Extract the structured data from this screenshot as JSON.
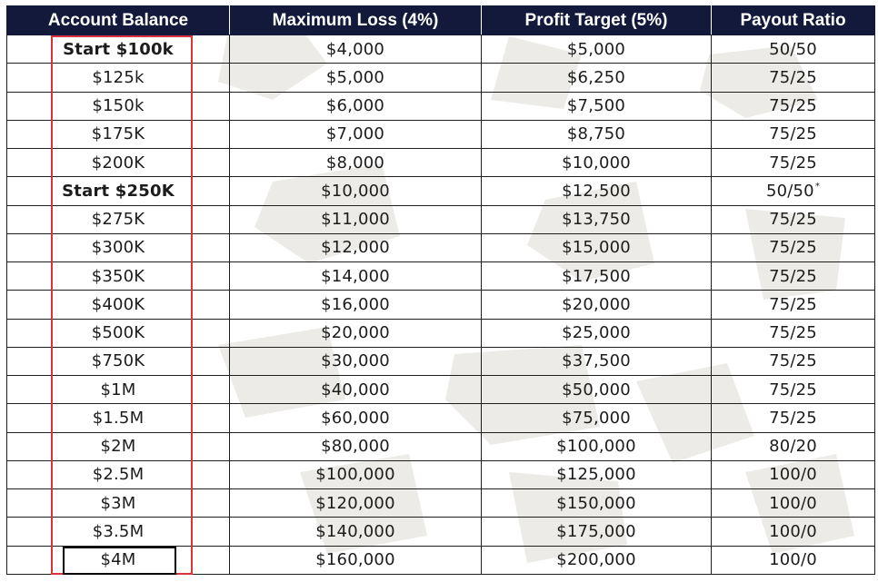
{
  "table": {
    "headers": [
      "Account Balance",
      "Maximum Loss (4%)",
      "Profit Target (5%)",
      "Payout Ratio"
    ],
    "rows": [
      {
        "balance": "Start $100k",
        "loss": "$4,000",
        "target": "$5,000",
        "ratio": "50/50",
        "bold": true,
        "star": ""
      },
      {
        "balance": "$125k",
        "loss": "$5,000",
        "target": "$6,250",
        "ratio": "75/25",
        "bold": false,
        "star": ""
      },
      {
        "balance": "$150k",
        "loss": "$6,000",
        "target": "$7,500",
        "ratio": "75/25",
        "bold": false,
        "star": ""
      },
      {
        "balance": "$175K",
        "loss": "$7,000",
        "target": "$8,750",
        "ratio": "75/25",
        "bold": false,
        "star": ""
      },
      {
        "balance": "$200K",
        "loss": "$8,000",
        "target": "$10,000",
        "ratio": "75/25",
        "bold": false,
        "star": ""
      },
      {
        "balance": "Start $250K",
        "loss": "$10,000",
        "target": "$12,500",
        "ratio": "50/50",
        "bold": true,
        "star": "*"
      },
      {
        "balance": "$275K",
        "loss": "$11,000",
        "target": "$13,750",
        "ratio": "75/25",
        "bold": false,
        "star": ""
      },
      {
        "balance": "$300K",
        "loss": "$12,000",
        "target": "$15,000",
        "ratio": "75/25",
        "bold": false,
        "star": ""
      },
      {
        "balance": "$350K",
        "loss": "$14,000",
        "target": "$17,500",
        "ratio": "75/25",
        "bold": false,
        "star": ""
      },
      {
        "balance": "$400K",
        "loss": "$16,000",
        "target": "$20,000",
        "ratio": "75/25",
        "bold": false,
        "star": ""
      },
      {
        "balance": "$500K",
        "loss": "$20,000",
        "target": "$25,000",
        "ratio": "75/25",
        "bold": false,
        "star": ""
      },
      {
        "balance": "$750K",
        "loss": "$30,000",
        "target": "$37,500",
        "ratio": "75/25",
        "bold": false,
        "star": ""
      },
      {
        "balance": "$1M",
        "loss": "$40,000",
        "target": "$50,000",
        "ratio": "75/25",
        "bold": false,
        "star": ""
      },
      {
        "balance": "$1.5M",
        "loss": "$60,000",
        "target": "$75,000",
        "ratio": "75/25",
        "bold": false,
        "star": ""
      },
      {
        "balance": "$2M",
        "loss": "$80,000",
        "target": "$100,000",
        "ratio": "80/20",
        "bold": false,
        "star": ""
      },
      {
        "balance": "$2.5M",
        "loss": "$100,000",
        "target": "$125,000",
        "ratio": "100/0",
        "bold": false,
        "star": ""
      },
      {
        "balance": "$3M",
        "loss": "$120,000",
        "target": "$150,000",
        "ratio": "100/0",
        "bold": false,
        "star": ""
      },
      {
        "balance": "$3.5M",
        "loss": "$140,000",
        "target": "$175,000",
        "ratio": "100/0",
        "bold": false,
        "star": ""
      },
      {
        "balance": "$4M",
        "loss": "$160,000",
        "target": "$200,000",
        "ratio": "100/0",
        "bold": false,
        "star": ""
      }
    ]
  },
  "colors": {
    "header_bg": "#13193a",
    "header_text": "#ffffff",
    "highlight_red": "#d9323a",
    "highlight_black": "#000000",
    "grid": "#1e1e1e"
  }
}
